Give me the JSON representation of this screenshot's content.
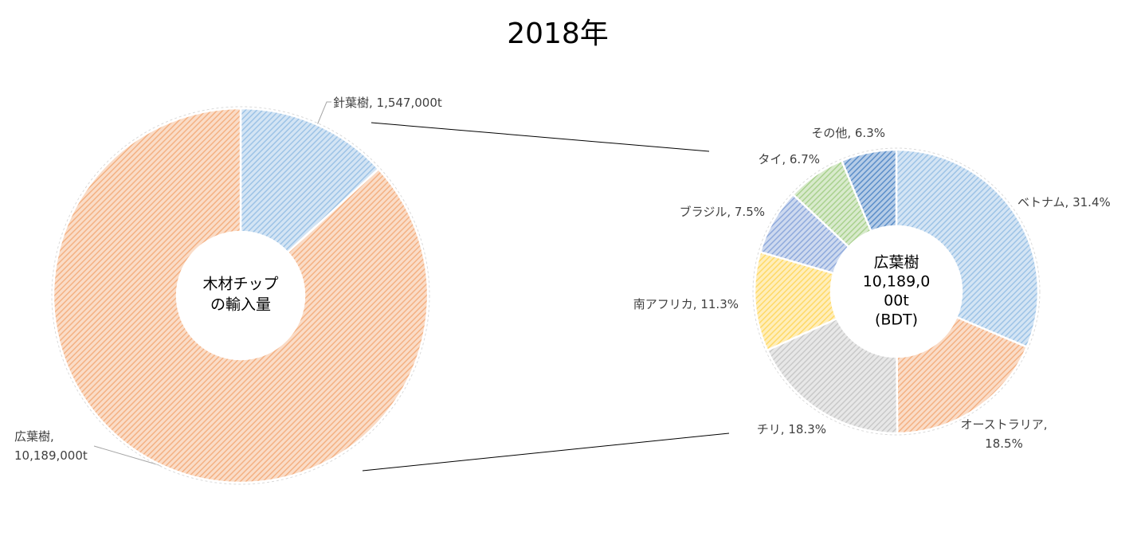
{
  "title": "2018年",
  "chart_data": [
    {
      "type": "donut",
      "values": [
        1547000,
        10189000
      ],
      "value_labels": [
        [
          "針葉樹, 1,547,000t"
        ],
        [
          "広葉樹,",
          "10,189,000t"
        ]
      ],
      "colors": [
        "#9dc3e6",
        "#f4b183"
      ],
      "center_label": [
        "木材チップ",
        "の輸入量"
      ]
    },
    {
      "type": "donut",
      "values": [
        31.4,
        18.5,
        18.3,
        11.3,
        7.5,
        6.7,
        6.3
      ],
      "value_labels": [
        [
          "ベトナム, 31.4%"
        ],
        [
          "オーストラリア,",
          "18.5%"
        ],
        [
          "チリ, 18.3%"
        ],
        [
          "南アフリカ, 11.3%"
        ],
        [
          "ブラジル, 7.5%"
        ],
        [
          "タイ, 6.7%"
        ],
        [
          "その他, 6.3%"
        ]
      ],
      "colors": [
        "#9dc3e6",
        "#f4b183",
        "#c9c9c9",
        "#ffd966",
        "#8faadc",
        "#a9d18e",
        "#5b8ec9"
      ],
      "center_label": [
        "広葉樹",
        "10,189,0",
        "00t",
        "(BDT)"
      ]
    }
  ]
}
